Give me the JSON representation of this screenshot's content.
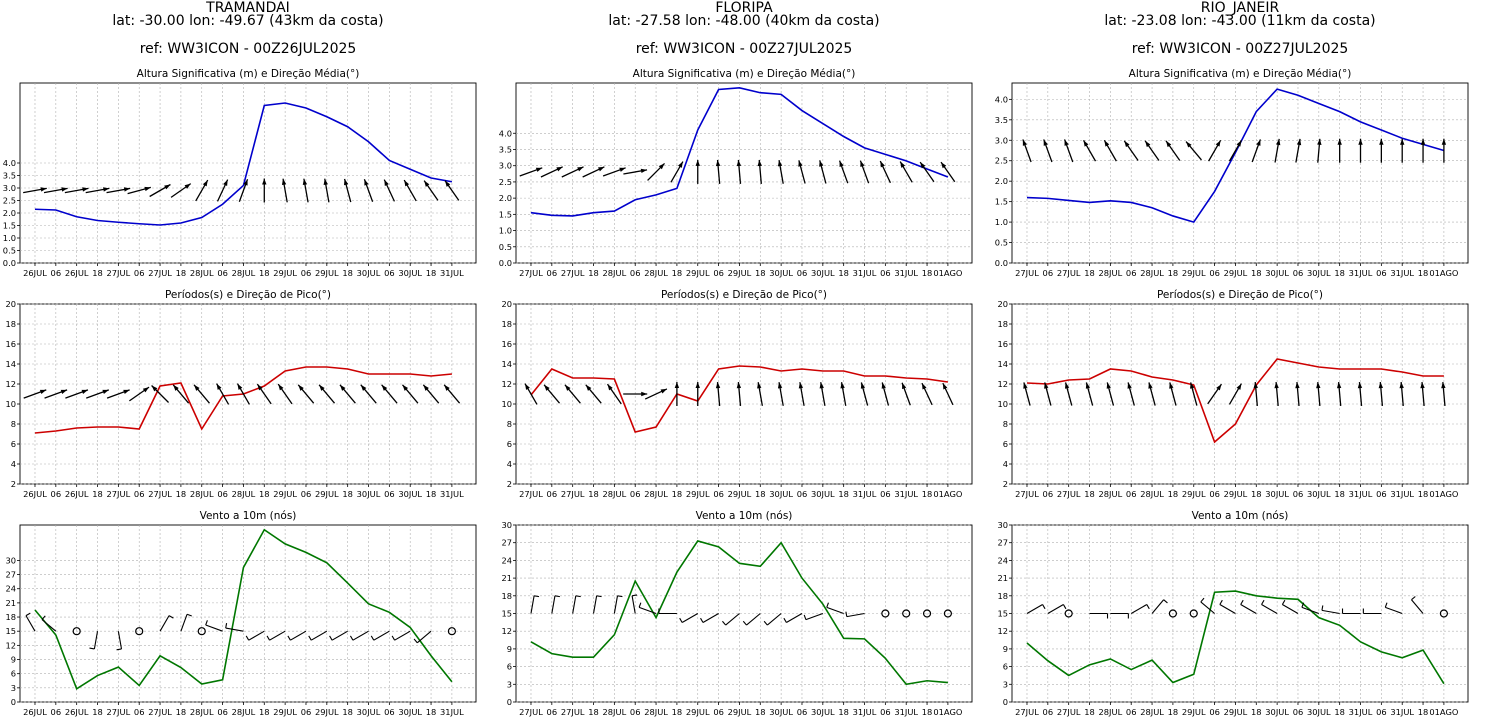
{
  "xlabels_a": [
    "26JUL",
    "06",
    "26JUL",
    "18",
    "27JUL",
    "06",
    "27JUL",
    "18",
    "28JUL",
    "06",
    "28JUL",
    "18",
    "29JUL",
    "06",
    "29JUL",
    "18",
    "30JUL",
    "06",
    "30JUL",
    "18",
    "31JUL"
  ],
  "xlabels_b": [
    "27JUL",
    "06",
    "27JUL",
    "18",
    "28JUL",
    "06",
    "28JUL",
    "18",
    "29JUL",
    "06",
    "29JUL",
    "18",
    "30JUL",
    "06",
    "30JUL",
    "18",
    "31JUL",
    "06",
    "31JUL",
    "18",
    "01AGO"
  ],
  "colors": {
    "height": "#0000cc",
    "period": "#cc0000",
    "wind": "#007700",
    "arrow": "#000000",
    "grid": "#b0b0b0"
  },
  "stations": [
    {
      "name": "TRAMANDAI",
      "coords": "lat: -30.00  lon: -49.67 (43km da costa)",
      "ref": "ref: WW3ICON - 00Z26JUL2025",
      "label_set": "a",
      "panels": [
        {
          "title": "Altura Significativa (m) e Direção Média(°)",
          "chart_data": {
            "type": "line",
            "series": [
              {
                "color_key": "height",
                "values": [
                  2.15,
                  2.12,
                  1.85,
                  1.7,
                  1.63,
                  1.57,
                  1.52,
                  1.6,
                  1.82,
                  2.35,
                  3.1,
                  6.3,
                  6.4,
                  6.2,
                  5.85,
                  5.45,
                  4.85,
                  4.1,
                  3.75,
                  3.4,
                  3.25
                ]
              }
            ],
            "ylim": [
              0,
              7.2
            ],
            "yticks": [
              0,
              0.5,
              1,
              1.5,
              2,
              2.5,
              3,
              3.5,
              4
            ],
            "arrow_level": 2.5,
            "arrow_dirs": [
              260,
              260,
              260,
              260,
              260,
              255,
              240,
              235,
              210,
              205,
              200,
              180,
              170,
              170,
              170,
              165,
              160,
              155,
              150,
              145,
              145
            ]
          }
        },
        {
          "title": "Períodos(s) e Direção de Pico(°)",
          "chart_data": {
            "type": "line",
            "series": [
              {
                "color_key": "period",
                "values": [
                  7.1,
                  7.3,
                  7.6,
                  7.7,
                  7.7,
                  7.5,
                  11.8,
                  12.1,
                  7.5,
                  10.8,
                  11.0,
                  11.8,
                  13.3,
                  13.7,
                  13.7,
                  13.5,
                  13.0,
                  13.0,
                  13.0,
                  12.8,
                  13.0
                ]
              }
            ],
            "ylim": [
              2,
              20
            ],
            "yticks": [
              2,
              4,
              6,
              8,
              10,
              12,
              14,
              16,
              18,
              20
            ],
            "arrow_level": 10,
            "arrow_dirs": [
              250,
              250,
              250,
              250,
              250,
              235,
              135,
              140,
              140,
              150,
              150,
              145,
              145,
              140,
              140,
              140,
              140,
              140,
              140,
              140,
              140
            ]
          }
        },
        {
          "title": "Vento a 10m (nós)",
          "chart_data": {
            "type": "line",
            "series": [
              {
                "color_key": "wind",
                "values": [
                  19.5,
                  14.2,
                  2.8,
                  5.6,
                  7.4,
                  3.5,
                  9.8,
                  7.3,
                  3.8,
                  4.7,
                  28.5,
                  36.5,
                  33.5,
                  31.7,
                  29.5,
                  25.2,
                  20.8,
                  19.0,
                  15.8,
                  9.8,
                  4.3
                ]
              }
            ],
            "ylim": [
              0,
              37.5
            ],
            "yticks": [
              0,
              3,
              6,
              9,
              12,
              15,
              18,
              21,
              24,
              27,
              30
            ],
            "barb_level": 15,
            "barb_dirs": [
              330,
              310,
              -1,
              190,
              170,
              -1,
              30,
              20,
              -1,
              290,
              280,
              240,
              240,
              240,
              240,
              240,
              240,
              240,
              240,
              230,
              -1
            ]
          }
        }
      ]
    },
    {
      "name": "FLORIPA",
      "coords": "lat: -27.58  lon: -48.00 (40km da costa)",
      "ref": "ref: WW3ICON - 00Z27JUL2025",
      "label_set": "b",
      "panels": [
        {
          "title": "Altura Significativa (m) e Direção Média(°)",
          "chart_data": {
            "type": "line",
            "series": [
              {
                "color_key": "height",
                "values": [
                  1.55,
                  1.47,
                  1.45,
                  1.55,
                  1.6,
                  1.95,
                  2.1,
                  2.3,
                  4.1,
                  5.35,
                  5.4,
                  5.25,
                  5.2,
                  4.7,
                  4.3,
                  3.9,
                  3.55,
                  3.35,
                  3.15,
                  2.9,
                  2.65
                ]
              }
            ],
            "ylim": [
              0,
              5.55
            ],
            "yticks": [
              0,
              0.5,
              1,
              1.5,
              2,
              2.5,
              3,
              3.5,
              4
            ],
            "arrow_level": 2.5,
            "arrow_dirs": [
              250,
              245,
              245,
              245,
              250,
              260,
              225,
              210,
              180,
              175,
              175,
              175,
              170,
              165,
              165,
              160,
              160,
              155,
              150,
              145,
              145
            ]
          }
        },
        {
          "title": "Períodos(s) e Direção de Pico(°)",
          "chart_data": {
            "type": "line",
            "series": [
              {
                "color_key": "period",
                "values": [
                  10.9,
                  13.5,
                  12.6,
                  12.6,
                  12.5,
                  7.2,
                  7.7,
                  11.0,
                  10.3,
                  13.5,
                  13.8,
                  13.7,
                  13.3,
                  13.5,
                  13.3,
                  13.3,
                  12.8,
                  12.8,
                  12.6,
                  12.5,
                  12.2
                ]
              }
            ],
            "ylim": [
              2,
              20
            ],
            "yticks": [
              2,
              4,
              6,
              8,
              10,
              12,
              14,
              16,
              18,
              20
            ],
            "arrow_level": 10,
            "arrow_dirs": [
              150,
              140,
              140,
              140,
              145,
              270,
              245,
              180,
              180,
              175,
              175,
              170,
              170,
              170,
              170,
              170,
              165,
              165,
              160,
              155,
              155
            ]
          }
        },
        {
          "title": "Vento a 10m (nós)",
          "chart_data": {
            "type": "line",
            "series": [
              {
                "color_key": "wind",
                "values": [
                  10.2,
                  8.2,
                  7.6,
                  7.6,
                  11.4,
                  20.5,
                  14.3,
                  22.0,
                  27.3,
                  26.3,
                  23.5,
                  23.0,
                  27.0,
                  21.0,
                  16.6,
                  10.8,
                  10.7,
                  7.4,
                  3.0,
                  3.6,
                  3.3
                ]
              }
            ],
            "ylim": [
              0,
              30
            ],
            "yticks": [
              0,
              3,
              6,
              9,
              12,
              15,
              18,
              21,
              24,
              27,
              30
            ],
            "barb_level": 15,
            "barb_dirs": [
              10,
              10,
              10,
              10,
              10,
              350,
              290,
              270,
              240,
              240,
              230,
              230,
              230,
              240,
              250,
              290,
              260,
              -1,
              -1,
              -1,
              -1
            ]
          }
        }
      ]
    },
    {
      "name": "RIO_JANEIR",
      "coords": "lat: -23.08  lon: -43.00 (11km da costa)",
      "ref": "ref: WW3ICON - 00Z27JUL2025",
      "label_set": "b",
      "panels": [
        {
          "title": "Altura Significativa (m) e Direção Média(°)",
          "chart_data": {
            "type": "line",
            "series": [
              {
                "color_key": "height",
                "values": [
                  1.6,
                  1.58,
                  1.53,
                  1.48,
                  1.52,
                  1.48,
                  1.35,
                  1.15,
                  1.0,
                  1.75,
                  2.7,
                  3.7,
                  4.25,
                  4.1,
                  3.9,
                  3.7,
                  3.45,
                  3.25,
                  3.05,
                  2.9,
                  2.75
                ]
              }
            ],
            "ylim": [
              0,
              4.4
            ],
            "yticks": [
              0,
              0.5,
              1,
              1.5,
              2,
              2.5,
              3,
              3.5,
              4
            ],
            "arrow_level": 2.5,
            "arrow_dirs": [
              160,
              160,
              160,
              150,
              150,
              145,
              145,
              145,
              140,
              210,
              210,
              200,
              190,
              190,
              185,
              180,
              180,
              180,
              180,
              180,
              180
            ]
          }
        },
        {
          "title": "Períodos(s) e Direção de Pico(°)",
          "chart_data": {
            "type": "line",
            "series": [
              {
                "color_key": "period",
                "values": [
                  12.1,
                  12.0,
                  12.4,
                  12.5,
                  13.5,
                  13.3,
                  12.7,
                  12.4,
                  11.9,
                  6.2,
                  8.0,
                  11.9,
                  14.5,
                  14.1,
                  13.7,
                  13.5,
                  13.5,
                  13.5,
                  13.2,
                  12.8,
                  12.8
                ]
              }
            ],
            "ylim": [
              2,
              20
            ],
            "yticks": [
              2,
              4,
              6,
              8,
              10,
              12,
              14,
              16,
              18,
              20
            ],
            "arrow_level": 10,
            "arrow_dirs": [
              165,
              165,
              165,
              165,
              165,
              165,
              165,
              165,
              165,
              215,
              210,
              175,
              175,
              175,
              175,
              175,
              175,
              175,
              175,
              175,
              175
            ]
          }
        },
        {
          "title": "Vento a 10m (nós)",
          "chart_data": {
            "type": "line",
            "series": [
              {
                "color_key": "wind",
                "values": [
                  10.0,
                  7.0,
                  4.5,
                  6.3,
                  7.3,
                  5.5,
                  7.1,
                  3.3,
                  4.7,
                  18.6,
                  18.8,
                  18.0,
                  17.6,
                  17.4,
                  14.3,
                  13.0,
                  10.2,
                  8.5,
                  7.5,
                  8.8,
                  3.1
                ]
              }
            ],
            "ylim": [
              0,
              30
            ],
            "yticks": [
              0,
              3,
              6,
              9,
              12,
              15,
              18,
              21,
              24,
              27,
              30
            ],
            "barb_level": 15,
            "barb_dirs": [
              60,
              60,
              -1,
              90,
              90,
              60,
              40,
              -1,
              -1,
              310,
              300,
              300,
              300,
              300,
              290,
              280,
              270,
              270,
              290,
              320,
              -1
            ]
          }
        }
      ]
    }
  ]
}
